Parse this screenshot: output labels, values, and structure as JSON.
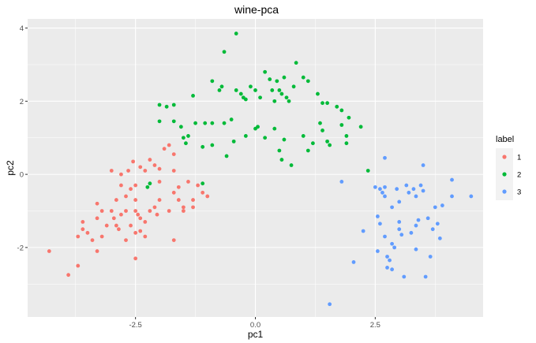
{
  "chart_data": {
    "type": "scatter",
    "title": "wine-pca",
    "xlabel": "pc1",
    "ylabel": "pc2",
    "xlim": [
      -4.75,
      4.75
    ],
    "ylim": [
      -3.9,
      4.25
    ],
    "x_ticks": [
      -2.5,
      0.0,
      2.5
    ],
    "x_tick_labels": [
      "-2.5",
      "0.0",
      "2.5"
    ],
    "y_ticks": [
      -2,
      0,
      2,
      4
    ],
    "y_tick_labels": [
      "-2",
      "0",
      "2",
      "4"
    ],
    "grid": true,
    "legend": {
      "title": "label",
      "position": "right"
    },
    "series": [
      {
        "name": "1",
        "color": "#F8766D",
        "points": [
          [
            -4.3,
            -2.1
          ],
          [
            -3.9,
            -2.75
          ],
          [
            -3.7,
            -2.5
          ],
          [
            -3.6,
            -1.5
          ],
          [
            -3.7,
            -1.7
          ],
          [
            -3.6,
            -1.3
          ],
          [
            -3.5,
            -1.6
          ],
          [
            -3.4,
            -1.8
          ],
          [
            -3.3,
            -0.8
          ],
          [
            -3.3,
            -1.2
          ],
          [
            -3.2,
            -1.0
          ],
          [
            -3.2,
            -1.7
          ],
          [
            -3.3,
            -2.1
          ],
          [
            -3.1,
            -1.4
          ],
          [
            -3.0,
            -1.0
          ],
          [
            -2.95,
            -1.2
          ],
          [
            -2.9,
            -1.4
          ],
          [
            -2.85,
            -1.5
          ],
          [
            -2.8,
            -1.1
          ],
          [
            -2.7,
            -1.0
          ],
          [
            -2.7,
            -1.8
          ],
          [
            -2.6,
            -1.4
          ],
          [
            -2.5,
            -1.6
          ],
          [
            -2.5,
            -2.3
          ],
          [
            -2.9,
            -0.7
          ],
          [
            -2.8,
            -0.3
          ],
          [
            -2.7,
            -0.6
          ],
          [
            -2.6,
            -0.4
          ],
          [
            -2.5,
            -0.3
          ],
          [
            -2.5,
            -0.7
          ],
          [
            -2.5,
            -1.0
          ],
          [
            -2.45,
            -1.1
          ],
          [
            -2.4,
            -1.2
          ],
          [
            -2.4,
            -1.55
          ],
          [
            -2.3,
            -1.3
          ],
          [
            -2.3,
            -1.7
          ],
          [
            -2.2,
            -1.0
          ],
          [
            -2.1,
            -0.9
          ],
          [
            -2.0,
            -0.7
          ],
          [
            -2.05,
            -1.1
          ],
          [
            -1.8,
            -1.0
          ],
          [
            -1.7,
            -0.5
          ],
          [
            -1.7,
            -1.8
          ],
          [
            -1.6,
            -0.35
          ],
          [
            -1.6,
            -0.7
          ],
          [
            -1.5,
            -0.9
          ],
          [
            -1.5,
            -1.0
          ],
          [
            -1.4,
            -0.2
          ],
          [
            -1.3,
            -0.7
          ],
          [
            -1.3,
            -0.9
          ],
          [
            -1.2,
            -0.3
          ],
          [
            -1.1,
            -0.5
          ],
          [
            -1.0,
            -0.6
          ],
          [
            -2.8,
            0.0
          ],
          [
            -2.65,
            0.1
          ],
          [
            -2.55,
            0.35
          ],
          [
            -2.4,
            0.2
          ],
          [
            -2.2,
            0.4
          ],
          [
            -2.1,
            0.25
          ],
          [
            -2.0,
            0.15
          ],
          [
            -1.9,
            0.7
          ],
          [
            -1.8,
            0.8
          ],
          [
            -1.7,
            0.55
          ],
          [
            -1.7,
            0.1
          ],
          [
            -2.0,
            -0.2
          ],
          [
            -3.0,
            0.1
          ],
          [
            -2.3,
            0.1
          ]
        ]
      },
      {
        "name": "2",
        "color": "#00BA38",
        "points": [
          [
            -0.4,
            3.85
          ],
          [
            -0.65,
            3.35
          ],
          [
            -0.9,
            2.55
          ],
          [
            -0.7,
            2.4
          ],
          [
            -0.75,
            2.3
          ],
          [
            -1.3,
            2.15
          ],
          [
            -1.7,
            1.9
          ],
          [
            -1.85,
            1.85
          ],
          [
            -2.0,
            1.9
          ],
          [
            -0.9,
            1.4
          ],
          [
            -0.65,
            1.4
          ],
          [
            -0.5,
            1.5
          ],
          [
            -0.4,
            2.3
          ],
          [
            -0.3,
            2.2
          ],
          [
            -0.2,
            2.05
          ],
          [
            -0.25,
            2.1
          ],
          [
            -0.1,
            2.4
          ],
          [
            0.0,
            2.3
          ],
          [
            0.1,
            2.1
          ],
          [
            0.2,
            2.8
          ],
          [
            0.3,
            2.6
          ],
          [
            0.35,
            2.3
          ],
          [
            0.4,
            2.0
          ],
          [
            0.45,
            2.55
          ],
          [
            0.5,
            2.3
          ],
          [
            0.55,
            2.2
          ],
          [
            0.6,
            2.65
          ],
          [
            0.65,
            2.1
          ],
          [
            0.7,
            2.0
          ],
          [
            0.8,
            2.4
          ],
          [
            0.85,
            3.05
          ],
          [
            1.0,
            2.65
          ],
          [
            1.1,
            2.55
          ],
          [
            1.3,
            2.2
          ],
          [
            1.4,
            1.95
          ],
          [
            1.5,
            1.95
          ],
          [
            1.7,
            1.85
          ],
          [
            1.8,
            1.75
          ],
          [
            1.95,
            1.55
          ],
          [
            2.2,
            1.3
          ],
          [
            -1.4,
            1.05
          ],
          [
            -1.25,
            1.4
          ],
          [
            -1.05,
            1.4
          ],
          [
            -1.1,
            0.75
          ],
          [
            -0.9,
            0.8
          ],
          [
            -0.6,
            0.5
          ],
          [
            -0.45,
            0.9
          ],
          [
            -0.2,
            1.05
          ],
          [
            0.0,
            1.25
          ],
          [
            0.05,
            1.3
          ],
          [
            0.2,
            1.0
          ],
          [
            0.5,
            0.65
          ],
          [
            0.55,
            0.4
          ],
          [
            0.6,
            0.95
          ],
          [
            0.75,
            0.25
          ],
          [
            1.1,
            0.65
          ],
          [
            1.2,
            0.85
          ],
          [
            1.35,
            1.4
          ],
          [
            1.4,
            1.2
          ],
          [
            1.5,
            0.9
          ],
          [
            1.55,
            0.8
          ],
          [
            1.8,
            1.35
          ],
          [
            1.9,
            1.05
          ],
          [
            1.9,
            0.85
          ],
          [
            -2.0,
            1.45
          ],
          [
            -1.7,
            1.45
          ],
          [
            -1.55,
            1.3
          ],
          [
            -1.5,
            1.0
          ],
          [
            -1.45,
            0.85
          ],
          [
            -2.2,
            -0.25
          ],
          [
            -2.25,
            -0.35
          ],
          [
            -1.1,
            -0.25
          ],
          [
            2.35,
            0.1
          ],
          [
            0.4,
            1.25
          ],
          [
            1.0,
            1.05
          ]
        ]
      },
      {
        "name": "3",
        "color": "#619CFF",
        "points": [
          [
            1.8,
            -0.2
          ],
          [
            1.55,
            -3.55
          ],
          [
            2.05,
            -2.4
          ],
          [
            2.25,
            -1.55
          ],
          [
            2.5,
            -0.35
          ],
          [
            2.6,
            -0.4
          ],
          [
            2.55,
            -1.15
          ],
          [
            2.55,
            -2.1
          ],
          [
            2.6,
            -1.35
          ],
          [
            2.65,
            -0.5
          ],
          [
            2.7,
            -0.35
          ],
          [
            2.7,
            -0.6
          ],
          [
            2.7,
            -1.7
          ],
          [
            2.75,
            -2.25
          ],
          [
            2.75,
            -2.55
          ],
          [
            2.8,
            -2.35
          ],
          [
            2.85,
            -0.9
          ],
          [
            2.85,
            -1.9
          ],
          [
            2.9,
            -2.0
          ],
          [
            2.95,
            -0.4
          ],
          [
            3.0,
            -1.3
          ],
          [
            3.05,
            -1.65
          ],
          [
            3.1,
            -2.8
          ],
          [
            3.15,
            -0.3
          ],
          [
            3.2,
            -0.5
          ],
          [
            3.25,
            -1.6
          ],
          [
            3.3,
            -0.4
          ],
          [
            3.35,
            -0.6
          ],
          [
            3.35,
            -2.05
          ],
          [
            3.4,
            -1.25
          ],
          [
            3.45,
            -0.3
          ],
          [
            3.5,
            -0.45
          ],
          [
            3.55,
            -2.8
          ],
          [
            3.6,
            -1.2
          ],
          [
            3.65,
            -2.25
          ],
          [
            3.75,
            -0.9
          ],
          [
            3.8,
            -1.35
          ],
          [
            3.85,
            -1.75
          ],
          [
            3.9,
            -0.85
          ],
          [
            4.1,
            -0.6
          ],
          [
            4.1,
            -0.15
          ],
          [
            4.5,
            -0.6
          ],
          [
            2.7,
            0.45
          ],
          [
            3.5,
            0.25
          ],
          [
            3.35,
            -1.4
          ],
          [
            3.0,
            -1.5
          ],
          [
            2.85,
            -2.6
          ],
          [
            3.0,
            -0.75
          ],
          [
            3.7,
            -1.5
          ]
        ]
      }
    ]
  }
}
